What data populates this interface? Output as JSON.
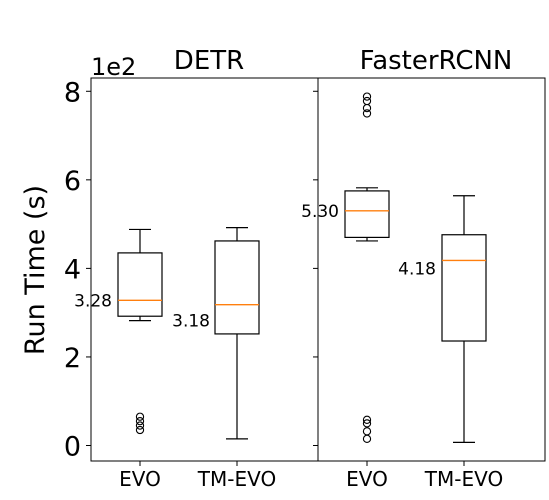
{
  "chart_data": {
    "type": "box",
    "ylabel": "Run Time (s)",
    "y_multiplier": "1e2",
    "ylim": [
      -0.35,
      8.3
    ],
    "yticks": [
      0,
      2,
      4,
      6,
      8
    ],
    "grid": false,
    "panels": [
      {
        "title": "DETR",
        "categories": [
          "EVO",
          "TM-EVO"
        ],
        "boxes": [
          {
            "whislo": 2.82,
            "q1": 2.92,
            "med": 3.28,
            "q3": 4.35,
            "whishi": 4.88,
            "fliers": [
              0.35,
              0.45,
              0.55,
              0.65
            ],
            "median_label": "3.28"
          },
          {
            "whislo": 0.15,
            "q1": 2.52,
            "med": 3.18,
            "q3": 4.62,
            "whishi": 4.92,
            "fliers": [],
            "median_label": "3.18"
          }
        ]
      },
      {
        "title": "FasterRCNN",
        "categories": [
          "EVO",
          "TM-EVO"
        ],
        "boxes": [
          {
            "whislo": 4.62,
            "q1": 4.7,
            "med": 5.3,
            "q3": 5.75,
            "whishi": 5.82,
            "fliers": [
              0.15,
              0.32,
              0.5,
              0.58,
              7.5,
              7.62,
              7.78,
              7.88
            ],
            "median_label": "5.30"
          },
          {
            "whislo": 0.07,
            "q1": 2.36,
            "med": 4.18,
            "q3": 4.76,
            "whishi": 5.64,
            "fliers": [],
            "median_label": "4.18"
          }
        ]
      }
    ],
    "colors": {
      "box": "#000000",
      "median": "#ff7f0e",
      "background": "#ffffff"
    }
  }
}
